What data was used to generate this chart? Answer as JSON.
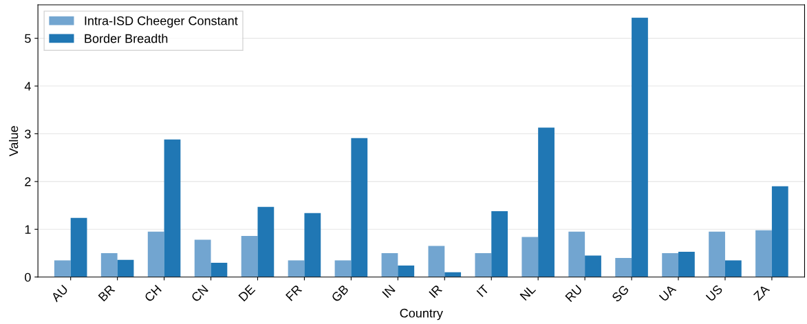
{
  "chart_data": {
    "type": "bar",
    "xlabel": "Country",
    "ylabel": "Value",
    "categories": [
      "AU",
      "BR",
      "CH",
      "CN",
      "DE",
      "FR",
      "GB",
      "IN",
      "IR",
      "IT",
      "NL",
      "RU",
      "SG",
      "UA",
      "US",
      "ZA"
    ],
    "series": [
      {
        "name": "Intra-ISD Cheeger Constant",
        "color": "#72a5d0",
        "values": [
          0.35,
          0.5,
          0.95,
          0.78,
          0.86,
          0.35,
          0.35,
          0.5,
          0.65,
          0.5,
          0.84,
          0.95,
          0.4,
          0.5,
          0.95,
          0.98
        ]
      },
      {
        "name": "Border Breadth",
        "color": "#2077b4",
        "values": [
          1.24,
          0.36,
          2.88,
          0.3,
          1.47,
          1.34,
          2.91,
          0.24,
          0.1,
          1.38,
          3.13,
          0.45,
          5.43,
          0.53,
          0.35,
          1.9
        ]
      }
    ],
    "ylim": [
      0,
      5.7
    ],
    "yticks": [
      0,
      1,
      2,
      3,
      4,
      5
    ],
    "grid": "y",
    "legend": "top left"
  }
}
